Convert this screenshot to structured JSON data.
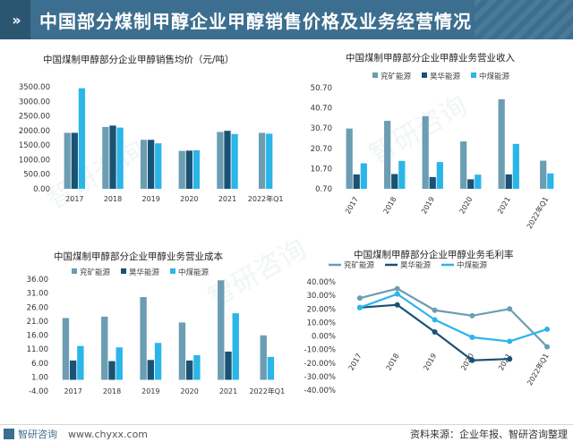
{
  "page_title": "中国部分煤制甲醇企业甲醇销售价格及业务经营情况",
  "footer": {
    "logo_text": "智研咨询",
    "website": "www.chyxx.com",
    "source_text": "资料来源：企业年报、智研咨询整理"
  },
  "watermark": {
    "brand": "智研咨询",
    "site": "www.chyxx.com"
  },
  "colors": {
    "yankuang": "#6b9db3",
    "haohua": "#1a5274",
    "zhongmei": "#2bb5e8",
    "header": "#3c6e8f"
  },
  "chart_data": [
    {
      "id": "price",
      "type": "bar",
      "title": "中国煤制甲醇部分企业甲醇销售均价（元/吨）",
      "categories": [
        "2017",
        "2018",
        "2019",
        "2020",
        "2021",
        "2022年Q1"
      ],
      "series": [
        {
          "name": "兖矿能源",
          "values": [
            1920,
            2120,
            1680,
            1300,
            1950,
            1920
          ]
        },
        {
          "name": "昊华能源",
          "values": [
            1920,
            2170,
            1680,
            1310,
            1990,
            null
          ]
        },
        {
          "name": "中煤能源",
          "values": [
            3450,
            2100,
            1560,
            1320,
            1880,
            1890
          ]
        }
      ],
      "ylim": [
        0,
        3500
      ],
      "ytick_labels": [
        "0.00",
        "500.00",
        "1000.00",
        "1500.00",
        "2000.00",
        "2500.00",
        "3000.00",
        "3500.00"
      ],
      "grid": false,
      "legend": "none"
    },
    {
      "id": "revenue",
      "type": "bar",
      "title": "中国煤制甲醇部分企业甲醇业务营业收入",
      "categories": [
        "2017",
        "2018",
        "2019",
        "2020",
        "2021",
        "2022年Q1"
      ],
      "series": [
        {
          "name": "兖矿能源",
          "values": [
            30.5,
            34.3,
            36.6,
            24.1,
            45.0,
            14.6
          ]
        },
        {
          "name": "昊华能源",
          "values": [
            7.8,
            8.0,
            6.5,
            5.4,
            7.8,
            null
          ]
        },
        {
          "name": "中煤能源",
          "values": [
            13.3,
            14.5,
            13.9,
            7.7,
            22.9,
            8.3
          ]
        }
      ],
      "ylim": [
        0.7,
        50.7
      ],
      "ytick_labels": [
        "0.70",
        "10.70",
        "20.70",
        "30.70",
        "40.70",
        "50.70"
      ],
      "grid": false,
      "legend": "top"
    },
    {
      "id": "cost",
      "type": "bar",
      "title": "中国煤制甲醇部分企业甲醇业务营业成本",
      "categories": [
        "2017",
        "2018",
        "2019",
        "2020",
        "2021",
        "2022年Q1"
      ],
      "series": [
        {
          "name": "兖矿能源",
          "values": [
            22.1,
            22.6,
            29.6,
            20.5,
            35.6,
            15.9
          ]
        },
        {
          "name": "昊华能源",
          "values": [
            6.9,
            6.7,
            7.1,
            6.9,
            10.1,
            null
          ]
        },
        {
          "name": "中煤能源",
          "values": [
            12.1,
            11.6,
            13.2,
            8.8,
            23.8,
            8.2
          ]
        }
      ],
      "ylim": [
        -4,
        36
      ],
      "ytick_labels": [
        "-4.00",
        "1.00",
        "6.00",
        "11.00",
        "16.00",
        "21.00",
        "26.00",
        "31.00",
        "36.00"
      ],
      "grid": false,
      "legend": "top"
    },
    {
      "id": "margin",
      "type": "line",
      "title": "中国煤制甲醇部分企业甲醇业务毛利率",
      "categories": [
        "2017",
        "2018",
        "2019",
        "2020",
        "2021",
        "2022年Q1"
      ],
      "series": [
        {
          "name": "兖矿能源",
          "values": [
            28.0,
            35.0,
            19.0,
            15.0,
            20.0,
            -8.0
          ]
        },
        {
          "name": "昊华能源",
          "values": [
            21.0,
            23.0,
            3.0,
            -18.0,
            -17.0,
            null
          ]
        },
        {
          "name": "中煤能源",
          "values": [
            21.0,
            31.0,
            12.0,
            -1.0,
            -4.0,
            5.0
          ]
        }
      ],
      "ylim": [
        -40,
        40
      ],
      "ytick_labels": [
        "-40.00%",
        "-30.00%",
        "-20.00%",
        "-10.00%",
        "0.00%",
        "10.00%",
        "20.00%",
        "30.00%",
        "40.00%"
      ],
      "grid": false,
      "legend": "top"
    }
  ]
}
